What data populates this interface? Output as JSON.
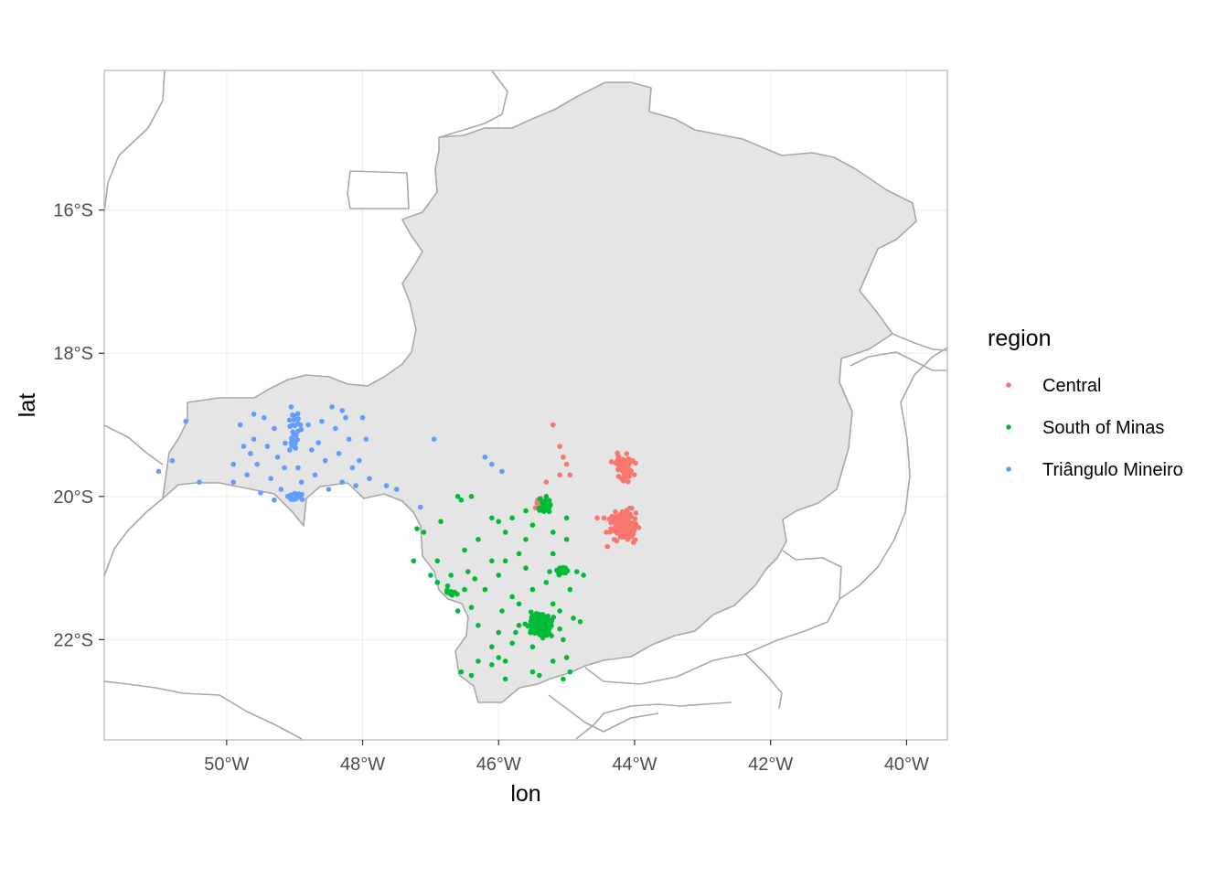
{
  "chart_data": {
    "type": "scatter",
    "title": "",
    "xlabel": "lon",
    "ylabel": "lat",
    "xlim": [
      -51.8,
      -39.4
    ],
    "ylim": [
      -23.4,
      -14.05
    ],
    "x_ticks": [
      {
        "value": -50,
        "label": "50°W"
      },
      {
        "value": -48,
        "label": "48°W"
      },
      {
        "value": -46,
        "label": "46°W"
      },
      {
        "value": -44,
        "label": "44°W"
      },
      {
        "value": -42,
        "label": "42°W"
      },
      {
        "value": -40,
        "label": "40°W"
      }
    ],
    "y_ticks": [
      {
        "value": -16,
        "label": "16°S"
      },
      {
        "value": -18,
        "label": "18°S"
      },
      {
        "value": -20,
        "label": "20°S"
      },
      {
        "value": -22,
        "label": "22°S"
      }
    ],
    "grid": true,
    "legend": {
      "title": "region",
      "placement": "right",
      "entries": [
        {
          "label": "Central",
          "color": "#F8766D"
        },
        {
          "label": "South of Minas",
          "color": "#00BA38"
        },
        {
          "label": "Triângulo Mineiro",
          "color": "#619CFF"
        }
      ]
    },
    "colors": {
      "land_fill": "#E5E5E5",
      "border": "#A8A8A8",
      "panel_border": "#B3B3B3",
      "grid": "#EBEBEB"
    },
    "series": [
      {
        "name": "Central",
        "color": "#F8766D",
        "clusters": [
          {
            "lon": -44.15,
            "lat": -19.6,
            "spread_lon": 0.12,
            "spread_lat": 0.15,
            "n": 60
          },
          {
            "lon": -44.15,
            "lat": -20.4,
            "spread_lon": 0.17,
            "spread_lat": 0.16,
            "n": 110
          },
          {
            "lon": -45.4,
            "lat": -20.1,
            "spread_lon": 0.06,
            "spread_lat": 0.06,
            "n": 10
          }
        ],
        "points": [
          [
            -45.2,
            -19.0
          ],
          [
            -45.1,
            -19.3
          ],
          [
            -45.05,
            -19.45
          ],
          [
            -45.0,
            -19.55
          ],
          [
            -44.95,
            -19.7
          ],
          [
            -45.1,
            -19.7
          ],
          [
            -45.3,
            -19.8
          ],
          [
            -44.45,
            -20.3
          ],
          [
            -44.55,
            -20.3
          ],
          [
            -44.35,
            -20.45
          ],
          [
            -44.3,
            -20.6
          ],
          [
            -44.4,
            -20.7
          ],
          [
            -44.1,
            -20.6
          ]
        ]
      },
      {
        "name": "South of Minas",
        "color": "#00BA38",
        "clusters": [
          {
            "lon": -45.4,
            "lat": -21.8,
            "spread_lon": 0.14,
            "spread_lat": 0.12,
            "n": 140
          },
          {
            "lon": -45.35,
            "lat": -20.15,
            "spread_lon": 0.1,
            "spread_lat": 0.1,
            "n": 25
          },
          {
            "lon": -45.05,
            "lat": -21.05,
            "spread_lon": 0.08,
            "spread_lat": 0.06,
            "n": 14
          },
          {
            "lon": -46.7,
            "lat": -21.35,
            "spread_lon": 0.06,
            "spread_lat": 0.05,
            "n": 10
          }
        ],
        "points": [
          [
            -47.2,
            -20.45
          ],
          [
            -47.1,
            -20.5
          ],
          [
            -47.25,
            -20.9
          ],
          [
            -46.85,
            -20.35
          ],
          [
            -46.6,
            -20.0
          ],
          [
            -46.55,
            -20.05
          ],
          [
            -46.4,
            -20.0
          ],
          [
            -46.1,
            -20.3
          ],
          [
            -46.0,
            -20.35
          ],
          [
            -45.9,
            -20.5
          ],
          [
            -46.3,
            -20.6
          ],
          [
            -46.5,
            -20.75
          ],
          [
            -46.9,
            -20.9
          ],
          [
            -47.0,
            -21.1
          ],
          [
            -46.9,
            -21.2
          ],
          [
            -46.7,
            -21.1
          ],
          [
            -46.5,
            -21.3
          ],
          [
            -46.4,
            -21.55
          ],
          [
            -46.6,
            -21.6
          ],
          [
            -46.3,
            -21.8
          ],
          [
            -46.0,
            -21.9
          ],
          [
            -46.1,
            -22.1
          ],
          [
            -46.3,
            -22.3
          ],
          [
            -46.4,
            -22.5
          ],
          [
            -46.1,
            -22.35
          ],
          [
            -45.9,
            -22.3
          ],
          [
            -45.8,
            -22.05
          ],
          [
            -45.7,
            -21.8
          ],
          [
            -45.5,
            -22.1
          ],
          [
            -45.4,
            -22.5
          ],
          [
            -45.2,
            -22.3
          ],
          [
            -45.0,
            -22.25
          ],
          [
            -44.95,
            -22.45
          ],
          [
            -45.05,
            -22.0
          ],
          [
            -45.2,
            -21.5
          ],
          [
            -45.5,
            -21.3
          ],
          [
            -45.6,
            -21.0
          ],
          [
            -45.7,
            -20.8
          ],
          [
            -45.9,
            -20.9
          ],
          [
            -46.0,
            -21.1
          ],
          [
            -46.2,
            -21.3
          ],
          [
            -45.8,
            -21.4
          ],
          [
            -45.3,
            -21.2
          ],
          [
            -45.2,
            -20.8
          ],
          [
            -45.0,
            -20.6
          ],
          [
            -45.0,
            -20.3
          ],
          [
            -45.2,
            -20.5
          ],
          [
            -45.5,
            -20.4
          ],
          [
            -45.6,
            -20.6
          ],
          [
            -45.8,
            -20.3
          ],
          [
            -45.6,
            -20.2
          ],
          [
            -44.75,
            -21.1
          ],
          [
            -44.85,
            -21.05
          ],
          [
            -44.95,
            -21.3
          ],
          [
            -44.9,
            -21.7
          ],
          [
            -44.8,
            -21.75
          ],
          [
            -45.1,
            -21.85
          ],
          [
            -45.5,
            -22.45
          ],
          [
            -45.05,
            -22.55
          ],
          [
            -46.55,
            -22.45
          ],
          [
            -46.0,
            -22.25
          ],
          [
            -45.75,
            -21.9
          ],
          [
            -45.95,
            -21.6
          ],
          [
            -45.7,
            -21.5
          ],
          [
            -46.35,
            -21.15
          ],
          [
            -46.1,
            -20.9
          ],
          [
            -45.3,
            -20.0
          ],
          [
            -46.75,
            -21.25
          ],
          [
            -46.45,
            -21.05
          ],
          [
            -45.1,
            -21.6
          ],
          [
            -45.25,
            -21.05
          ],
          [
            -45.9,
            -22.55
          ]
        ]
      },
      {
        "name": "Triângulo Mineiro",
        "color": "#619CFF",
        "clusters": [
          {
            "lon": -49.0,
            "lat": -19.1,
            "spread_lon": 0.1,
            "spread_lat": 0.22,
            "n": 30
          },
          {
            "lon": -49.0,
            "lat": -20.0,
            "spread_lon": 0.12,
            "spread_lat": 0.05,
            "n": 18
          }
        ],
        "points": [
          [
            -51.0,
            -19.65
          ],
          [
            -50.8,
            -19.5
          ],
          [
            -50.6,
            -18.95
          ],
          [
            -50.4,
            -19.8
          ],
          [
            -49.9,
            -19.55
          ],
          [
            -49.8,
            -19.0
          ],
          [
            -49.75,
            -19.3
          ],
          [
            -49.7,
            -19.7
          ],
          [
            -49.6,
            -18.85
          ],
          [
            -49.6,
            -19.2
          ],
          [
            -49.55,
            -19.55
          ],
          [
            -49.5,
            -19.95
          ],
          [
            -49.45,
            -18.9
          ],
          [
            -49.4,
            -19.3
          ],
          [
            -49.35,
            -19.75
          ],
          [
            -49.3,
            -19.05
          ],
          [
            -49.25,
            -19.45
          ],
          [
            -49.2,
            -19.9
          ],
          [
            -48.8,
            -19.0
          ],
          [
            -48.75,
            -19.35
          ],
          [
            -48.7,
            -19.7
          ],
          [
            -48.6,
            -18.95
          ],
          [
            -48.55,
            -19.5
          ],
          [
            -48.5,
            -19.9
          ],
          [
            -48.45,
            -18.75
          ],
          [
            -48.4,
            -19.05
          ],
          [
            -48.35,
            -19.4
          ],
          [
            -48.3,
            -19.8
          ],
          [
            -48.25,
            -18.9
          ],
          [
            -48.2,
            -19.2
          ],
          [
            -48.15,
            -19.6
          ],
          [
            -48.1,
            -19.85
          ],
          [
            -48.05,
            -19.5
          ],
          [
            -48.0,
            -18.9
          ],
          [
            -47.95,
            -19.2
          ],
          [
            -47.9,
            -19.75
          ],
          [
            -47.65,
            -19.85
          ],
          [
            -47.5,
            -19.9
          ],
          [
            -47.15,
            -20.15
          ],
          [
            -46.95,
            -19.2
          ],
          [
            -46.2,
            -19.45
          ],
          [
            -46.1,
            -19.55
          ],
          [
            -45.95,
            -19.65
          ],
          [
            -49.65,
            -19.4
          ],
          [
            -49.15,
            -19.6
          ],
          [
            -48.9,
            -19.8
          ],
          [
            -48.65,
            -19.25
          ],
          [
            -48.3,
            -18.8
          ],
          [
            -49.9,
            -19.8
          ],
          [
            -49.3,
            -20.05
          ],
          [
            -49.05,
            -18.75
          ],
          [
            -48.95,
            -19.6
          ]
        ]
      }
    ]
  }
}
